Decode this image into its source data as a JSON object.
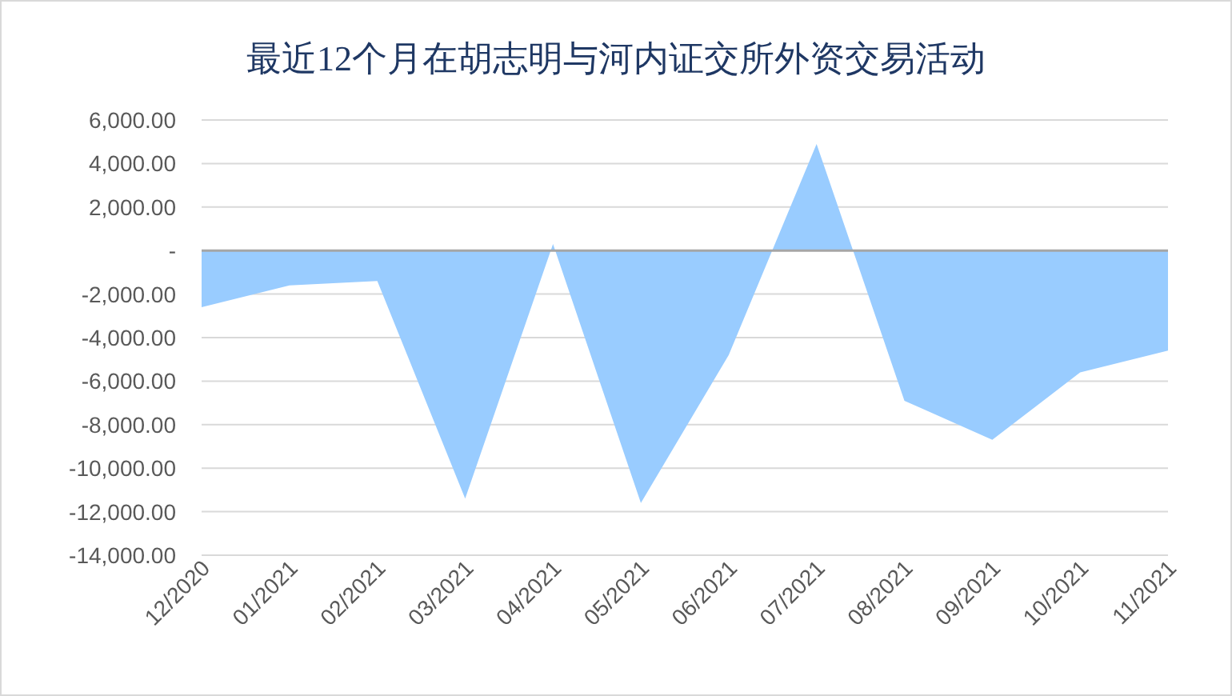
{
  "chart_data": {
    "type": "area",
    "title": "最近12个月在胡志明与河内证交所外资交易活动",
    "categories": [
      "12/2020",
      "01/2021",
      "02/2021",
      "03/2021",
      "04/2021",
      "05/2021",
      "06/2021",
      "07/2021",
      "08/2021",
      "09/2021",
      "10/2021",
      "11/2021"
    ],
    "values": [
      -2600,
      -1600,
      -1400,
      -11400,
      300,
      -11600,
      -4800,
      4900,
      -6900,
      -8700,
      -5600,
      -4600
    ],
    "color": "#99ccff",
    "ylim": [
      -14000,
      6000
    ],
    "yticks": [
      {
        "value": 6000,
        "label": "6,000.00"
      },
      {
        "value": 4000,
        "label": "4,000.00"
      },
      {
        "value": 2000,
        "label": "2,000.00"
      },
      {
        "value": 0,
        "label": "-"
      },
      {
        "value": -2000,
        "label": "-2,000.00"
      },
      {
        "value": -4000,
        "label": "-4,000.00"
      },
      {
        "value": -6000,
        "label": "-6,000.00"
      },
      {
        "value": -8000,
        "label": "-8,000.00"
      },
      {
        "value": -10000,
        "label": "-10,000.00"
      },
      {
        "value": -12000,
        "label": "-12,000.00"
      },
      {
        "value": -14000,
        "label": "-14,000.00"
      }
    ],
    "grid": "y"
  }
}
